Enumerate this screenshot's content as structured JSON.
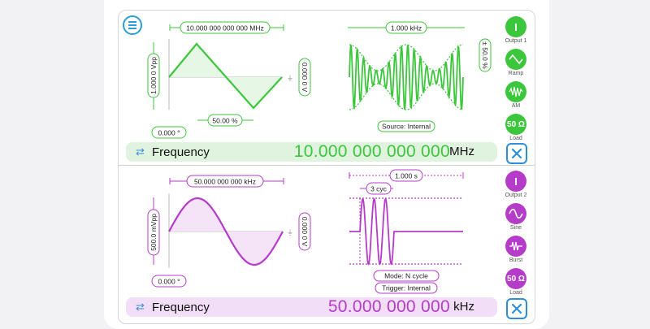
{
  "colors": {
    "ch1": "#3cc63c",
    "ch2": "#b43cc8",
    "accent": "#2e8fd8"
  },
  "ch1": {
    "period_label": "10.000 000 000 000 MHz",
    "amplitude_label": "1.000 0 Vpp",
    "offset_label": "0.000 0 V",
    "symmetry_label": "50.00 %",
    "phase_label": "0.000 °",
    "mod_freq_label": "1.000 kHz",
    "mod_depth_label": "± 50.0 %",
    "source_label": "Source: Internal",
    "freq_field": {
      "label": "Frequency",
      "value": "10.000 000 000 000",
      "unit": "MHz"
    },
    "buttons": {
      "output": "Output 1",
      "waveform": "Ramp",
      "mod": "AM",
      "load": "Load",
      "load_value": "50 Ω",
      "output_glyph": "I"
    }
  },
  "ch2": {
    "period_label": "50.000 000 000 kHz",
    "amplitude_label": "500.0 mVpp",
    "offset_label": "0.000 0 V",
    "phase_label": "0.000 °",
    "burst_period_label": "1.000 s",
    "cycles_label": "3 cyc",
    "mode_label": "Mode: N cycle",
    "trigger_label": "Trigger: Internal",
    "freq_field": {
      "label": "Frequency",
      "value": "50.000 000 000",
      "unit": "kHz"
    },
    "buttons": {
      "output": "Output 2",
      "waveform": "Sine",
      "mod": "Burst",
      "load": "Load",
      "load_value": "50 Ω",
      "output_glyph": "I"
    }
  },
  "icons": {
    "menu": "hamburger-menu-icon",
    "swap": "swap-arrows-icon",
    "tools": "tools-icon"
  }
}
